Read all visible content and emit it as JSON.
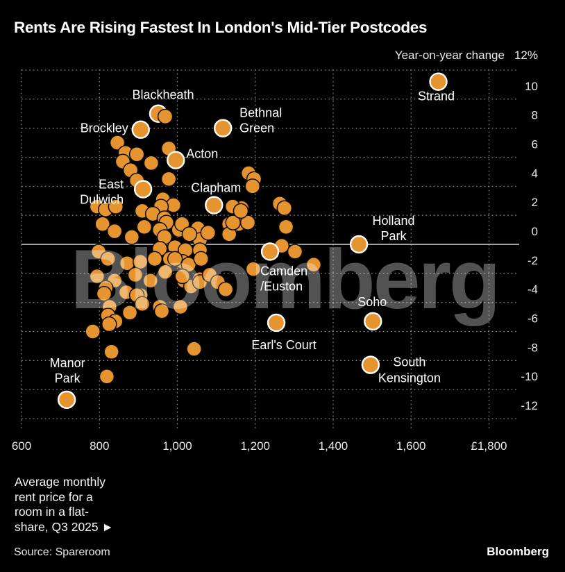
{
  "title": "Rents Are Rising Fastest In London's Mid-Tier Postcodes",
  "y_axis_header": {
    "label": "Year-on-year change",
    "top_tick": "12%"
  },
  "watermark": "Bloomberg",
  "footnote": {
    "lines": [
      "Average monthly",
      "rent price for a",
      "room in a flat-",
      "share, Q3 2025 ►"
    ]
  },
  "source": "Source: Spareroom",
  "brand": "Bloomberg",
  "colors": {
    "background": "#000000",
    "dot": "#E5942F",
    "dot_outline": "#0a0a0a",
    "ring": "#ffffff",
    "grid": "#8a8a8a",
    "zero_line": "#d8d8d8",
    "text": "#ffffff",
    "tick_text": "#e9e9e9",
    "watermark": "rgba(255,255,255,0.32)"
  },
  "chart_data": {
    "type": "scatter",
    "xlabel": "Average monthly rent price for a room in a flat-share, Q3 2025 (GBP)",
    "ylabel": "Year-on-year change (%)",
    "xlim": [
      600,
      1800
    ],
    "ylim": [
      -12,
      12
    ],
    "grid": "dashed",
    "x_axis": {
      "ticks": [
        {
          "value": 600,
          "label": "600"
        },
        {
          "value": 800,
          "label": "800"
        },
        {
          "value": 1000,
          "label": "1,000"
        },
        {
          "value": 1200,
          "label": "1,200"
        },
        {
          "value": 1400,
          "label": "1,400"
        },
        {
          "value": 1600,
          "label": "1,600"
        },
        {
          "value": 1800,
          "label": "£1,800"
        }
      ]
    },
    "y_axis": {
      "grid_values": [
        12,
        10,
        8,
        6,
        4,
        2,
        0,
        -2,
        -4,
        -6,
        -8,
        -10,
        -12
      ],
      "ticks": [
        {
          "value": 10,
          "label": "10"
        },
        {
          "value": 8,
          "label": "8"
        },
        {
          "value": 6,
          "label": "6"
        },
        {
          "value": 4,
          "label": "4"
        },
        {
          "value": 2,
          "label": "2"
        },
        {
          "value": 0,
          "label": "0"
        },
        {
          "value": -2,
          "label": "-2"
        },
        {
          "value": -4,
          "label": "-4"
        },
        {
          "value": -6,
          "label": "-6"
        },
        {
          "value": -8,
          "label": "-8"
        },
        {
          "value": -10,
          "label": "-10"
        },
        {
          "value": -12,
          "label": "-12"
        }
      ]
    },
    "labeled_points": [
      {
        "name": "Strand",
        "rent": 1670,
        "pct": 11.2,
        "label": {
          "anchor": "middle",
          "dx": -3,
          "lines": [
            {
              "text": "Strand",
              "dy": 27
            }
          ]
        }
      },
      {
        "name": "Blackheath",
        "rent": 951,
        "pct": 9.0,
        "label": {
          "anchor": "middle",
          "dx": 7,
          "lines": [
            {
              "text": "Blackheath",
              "dy": -21
            }
          ]
        }
      },
      {
        "name": "Brockley",
        "rent": 906,
        "pct": 7.9,
        "label": {
          "anchor": "end",
          "dx": -18,
          "lines": [
            {
              "text": "Brockley",
              "dy": 4
            }
          ]
        }
      },
      {
        "name": "Bethnal Green",
        "rent": 1117,
        "pct": 8.0,
        "label": {
          "anchor": "start",
          "dx": 24,
          "lines": [
            {
              "text": "Bethnal",
              "dy": -16
            },
            {
              "text": "Green",
              "dy": 6
            }
          ]
        }
      },
      {
        "name": "Acton",
        "rent": 996,
        "pct": 5.8,
        "label": {
          "anchor": "start",
          "dx": 15,
          "lines": [
            {
              "text": "Acton",
              "dy": -3
            }
          ]
        }
      },
      {
        "name": "East Dulwich",
        "rent": 912,
        "pct": 3.8,
        "label": {
          "anchor": "end",
          "dx": -28,
          "lines": [
            {
              "text": "East",
              "dy": -1
            },
            {
              "text": "Dulwich",
              "dy": 21
            }
          ]
        }
      },
      {
        "name": "Clapham",
        "rent": 1094,
        "pct": 2.7,
        "label": {
          "anchor": "middle",
          "dx": 3,
          "lines": [
            {
              "text": "Clapham",
              "dy": -19
            }
          ]
        }
      },
      {
        "name": "Holland Park",
        "rent": 1466,
        "pct": 0.0,
        "label": {
          "anchor": "middle",
          "dx": 50,
          "lines": [
            {
              "text": "Holland",
              "dy": -28
            },
            {
              "text": "Park",
              "dy": -6
            }
          ]
        }
      },
      {
        "name": "Camden/Euston",
        "rent": 1238,
        "pct": -0.5,
        "label": {
          "anchor": "start",
          "dx": -14,
          "lines": [
            {
              "text": "Camden",
              "dy": 34
            },
            {
              "text": "/Euston",
              "dy": 56
            }
          ]
        }
      },
      {
        "name": "Soho",
        "rent": 1502,
        "pct": -5.3,
        "label": {
          "anchor": "middle",
          "dx": -1,
          "lines": [
            {
              "text": "Soho",
              "dy": -22
            }
          ]
        }
      },
      {
        "name": "Earl's Court",
        "rent": 1254,
        "pct": -5.4,
        "label": {
          "anchor": "middle",
          "dx": 11,
          "lines": [
            {
              "text": "Earl's Court",
              "dy": 38
            }
          ]
        }
      },
      {
        "name": "South Kensington",
        "rent": 1496,
        "pct": -8.3,
        "label": {
          "anchor": "middle",
          "dx": 56,
          "lines": [
            {
              "text": "South",
              "dy": 2
            },
            {
              "text": "Kensington",
              "dy": 25
            }
          ]
        }
      },
      {
        "name": "Manor Park",
        "rent": 716,
        "pct": -10.7,
        "label": {
          "anchor": "middle",
          "dx": 1,
          "lines": [
            {
              "text": "Manor",
              "dy": -47
            },
            {
              "text": "Park",
              "dy": -25
            }
          ]
        }
      }
    ],
    "points": [
      [
        969,
        8.8
      ],
      [
        846,
        7.0
      ],
      [
        867,
        6.3
      ],
      [
        896,
        6.2
      ],
      [
        978,
        6.6
      ],
      [
        860,
        5.7
      ],
      [
        933,
        5.6
      ],
      [
        880,
        5.1
      ],
      [
        896,
        4.4
      ],
      [
        978,
        4.5
      ],
      [
        963,
        3.1
      ],
      [
        990,
        2.7
      ],
      [
        1183,
        4.9
      ],
      [
        1197,
        4.5
      ],
      [
        1193,
        4.0
      ],
      [
        794,
        2.6
      ],
      [
        816,
        2.4
      ],
      [
        842,
        2.6
      ],
      [
        910,
        2.3
      ],
      [
        958,
        2.6
      ],
      [
        937,
        2.1
      ],
      [
        967,
        1.8
      ],
      [
        808,
        1.4
      ],
      [
        839,
        0.9
      ],
      [
        883,
        0.5
      ],
      [
        915,
        1.2
      ],
      [
        972,
        1.5
      ],
      [
        1004,
        1.0
      ],
      [
        1012,
        1.4
      ],
      [
        1035,
        0.7
      ],
      [
        1053,
        1.1
      ],
      [
        1058,
        0.3
      ],
      [
        1079,
        0.8
      ],
      [
        1031,
        0.7
      ],
      [
        955,
        1.0
      ],
      [
        967,
        0.5
      ],
      [
        994,
        -0.2
      ],
      [
        1021,
        -0.4
      ],
      [
        1058,
        -0.4
      ],
      [
        955,
        -0.3
      ],
      [
        981,
        -1.0
      ],
      [
        1013,
        -1.2
      ],
      [
        1133,
        1.4
      ],
      [
        1157,
        1.4
      ],
      [
        1133,
        0.7
      ],
      [
        1181,
        1.5
      ],
      [
        1143,
        1.5
      ],
      [
        1165,
        2.5
      ],
      [
        1142,
        2.6
      ],
      [
        1163,
        2.3
      ],
      [
        1263,
        2.8
      ],
      [
        1275,
        2.5
      ],
      [
        1279,
        1.2
      ],
      [
        1268,
        -0.1
      ],
      [
        1302,
        -0.5
      ],
      [
        1350,
        -1.4
      ],
      [
        1195,
        -1.7
      ],
      [
        1017,
        -2.5
      ],
      [
        1035,
        -2.9
      ],
      [
        798,
        -0.5
      ],
      [
        822,
        -1.0
      ],
      [
        871,
        -1.3
      ],
      [
        905,
        -1.2
      ],
      [
        942,
        -1.0
      ],
      [
        994,
        -1.0
      ],
      [
        1029,
        -1.4
      ],
      [
        794,
        -2.2
      ],
      [
        839,
        -2.5
      ],
      [
        892,
        -2.1
      ],
      [
        931,
        -2.5
      ],
      [
        969,
        -1.9
      ],
      [
        1013,
        -2.2
      ],
      [
        1057,
        -2.4
      ],
      [
        816,
        -3.0
      ],
      [
        869,
        -3.3
      ],
      [
        906,
        -3.5
      ],
      [
        955,
        -4.3
      ],
      [
        1008,
        -4.3
      ],
      [
        812,
        -3.4
      ],
      [
        896,
        -3.5
      ],
      [
        826,
        -4.3
      ],
      [
        822,
        -4.9
      ],
      [
        841,
        -5.3
      ],
      [
        825,
        -5.5
      ],
      [
        878,
        -4.7
      ],
      [
        910,
        -4.1
      ],
      [
        960,
        -4.6
      ],
      [
        1061,
        -1.0
      ],
      [
        1058,
        -2.6
      ],
      [
        1083,
        -2.1
      ],
      [
        1104,
        -2.6
      ],
      [
        1124,
        -3.1
      ],
      [
        783,
        -6.0
      ],
      [
        831,
        -7.4
      ],
      [
        819,
        -9.1
      ],
      [
        1043,
        -7.2
      ]
    ]
  }
}
